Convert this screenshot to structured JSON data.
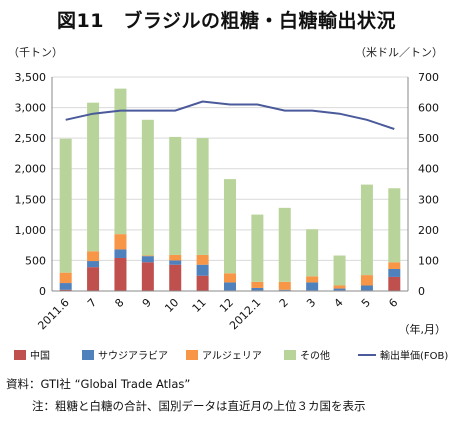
{
  "title": "図11　ブラジルの粗糖・白糖輸出状況",
  "unit_left": "（千トン）",
  "unit_right": "（米ドル／トン）",
  "source": "資料：GTI社 “Global Trade Atlas”",
  "note": "注：粗糖と白糖の合計、国別データは直近月の上位３カ国を表示",
  "chart_data": {
    "type": "bar",
    "stacked": true,
    "categories": [
      "2011.6",
      "7",
      "8",
      "9",
      "10",
      "11",
      "12",
      "2012.1",
      "2",
      "3",
      "4",
      "5",
      "6"
    ],
    "xlabel_unit": "（年,月）",
    "y_left": {
      "min": 0,
      "max": 3500,
      "ticks": [
        "0",
        "500",
        "1,000",
        "1,500",
        "2,000",
        "2,500",
        "3,000",
        "3,500"
      ]
    },
    "y_right": {
      "min": 0,
      "max": 700,
      "ticks": [
        "0",
        "100",
        "200",
        "300",
        "400",
        "500",
        "600",
        "700"
      ]
    },
    "grid": true,
    "legend_position": "bottom",
    "series": [
      {
        "name": "中国",
        "color": "#c0504d",
        "axis": "left",
        "values": [
          20,
          390,
          540,
          470,
          430,
          250,
          10,
          10,
          10,
          10,
          10,
          10,
          230
        ]
      },
      {
        "name": "サウジアラビア",
        "color": "#4f81bd",
        "axis": "left",
        "values": [
          110,
          100,
          140,
          100,
          70,
          180,
          130,
          40,
          10,
          130,
          30,
          80,
          130
        ]
      },
      {
        "name": "アルジェリア",
        "color": "#f79646",
        "axis": "left",
        "values": [
          170,
          160,
          250,
          10,
          90,
          160,
          150,
          100,
          130,
          100,
          50,
          170,
          110
        ]
      },
      {
        "name": "その他",
        "color": "#b8d49a",
        "axis": "left",
        "values": [
          2190,
          2430,
          2380,
          2220,
          1930,
          1910,
          1540,
          1100,
          1210,
          770,
          490,
          1480,
          1210
        ]
      },
      {
        "name": "輸出単価(FOB)",
        "color": "#4a5a9a",
        "axis": "right",
        "type": "line",
        "values": [
          560,
          580,
          590,
          590,
          590,
          620,
          610,
          610,
          590,
          590,
          580,
          560,
          530
        ]
      }
    ]
  }
}
